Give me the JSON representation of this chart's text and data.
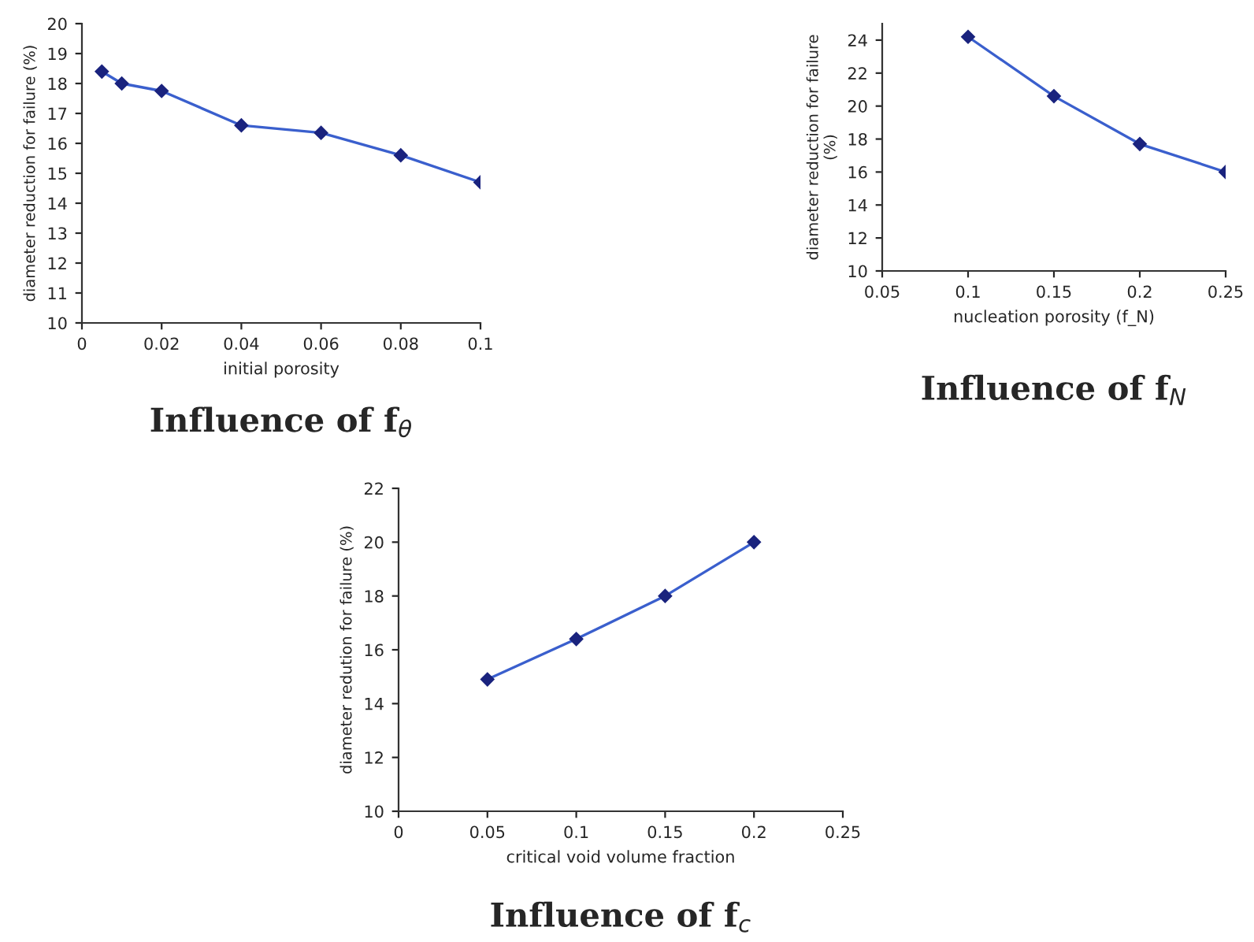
{
  "chart_data": [
    {
      "type": "line",
      "title": "Influence of f$_{θ}$",
      "xlabel": "initial porosity",
      "ylabel": "diameter reduction for failure (%)",
      "marker": "diamond",
      "line_style": "solid",
      "grid": false,
      "legend": false,
      "x": [
        0.005,
        0.01,
        0.02,
        0.04,
        0.06,
        0.08,
        0.1
      ],
      "series": [
        {
          "color": "#3a5fcd",
          "values": [
            18.4,
            18.0,
            17.75,
            16.6,
            16.35,
            15.6,
            14.7
          ]
        }
      ],
      "xlim": [
        0,
        0.1
      ],
      "xticks": [
        0,
        0.02,
        0.04,
        0.06,
        0.08,
        0.1
      ],
      "ylim": [
        10,
        20
      ],
      "yticks": [
        10,
        11,
        12,
        13,
        14,
        15,
        16,
        17,
        18,
        19,
        20
      ]
    },
    {
      "type": "line",
      "title": "Influence of f$_{N}$",
      "xlabel": "nucleation porosity (f_N)",
      "ylabel": "diameter reduction for failure\n(%)",
      "marker": "diamond",
      "line_style": "solid",
      "grid": false,
      "legend": false,
      "x": [
        0.1,
        0.15,
        0.2,
        0.25
      ],
      "series": [
        {
          "color": "#3a5fcd",
          "values": [
            24.2,
            20.6,
            17.7,
            16.0
          ]
        }
      ],
      "xlim": [
        0.05,
        0.25
      ],
      "xticks": [
        0.05,
        0.1,
        0.15,
        0.2,
        0.25
      ],
      "ylim": [
        10,
        25
      ],
      "yticks": [
        10,
        12,
        14,
        16,
        18,
        20,
        22,
        24
      ]
    },
    {
      "type": "line",
      "title": "Influence of f$_{c}$",
      "xlabel": "critical void volume fraction",
      "ylabel": "diameter redution for failure (%)",
      "marker": "diamond",
      "line_style": "solid",
      "grid": false,
      "legend": false,
      "x": [
        0.05,
        0.1,
        0.15,
        0.2
      ],
      "series": [
        {
          "color": "#3a5fcd",
          "values": [
            14.9,
            16.4,
            18.0,
            20.0
          ]
        }
      ],
      "xlim": [
        0,
        0.25
      ],
      "xticks": [
        0,
        0.05,
        0.1,
        0.15,
        0.2,
        0.25
      ],
      "ylim": [
        10,
        22
      ],
      "yticks": [
        10,
        12,
        14,
        16,
        18,
        20,
        22
      ]
    }
  ]
}
